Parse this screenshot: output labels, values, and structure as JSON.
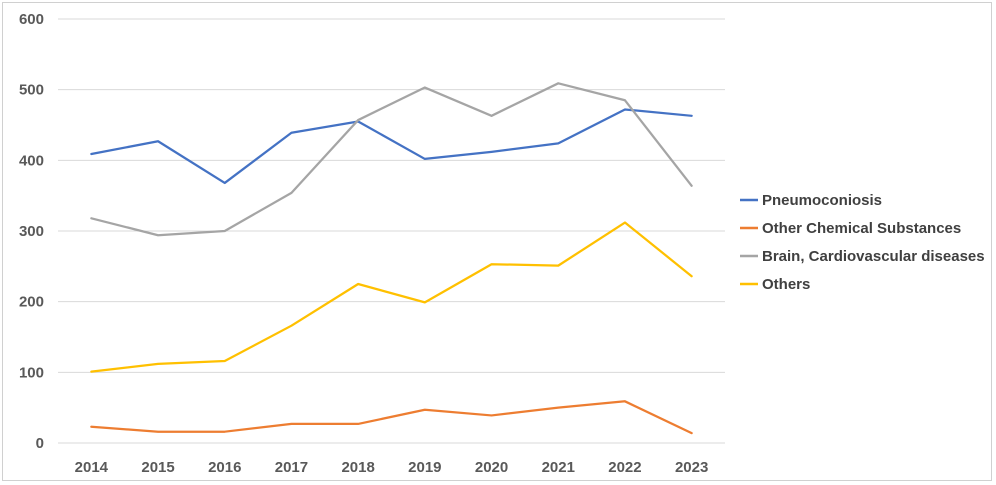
{
  "chart_data": {
    "type": "line",
    "title": "",
    "xlabel": "",
    "ylabel": "",
    "categories": [
      "2014",
      "2015",
      "2016",
      "2017",
      "2018",
      "2019",
      "2020",
      "2021",
      "2022",
      "2023"
    ],
    "ylim": [
      0,
      600
    ],
    "yticks": [
      "0",
      "100",
      "200",
      "300",
      "400",
      "500",
      "600"
    ],
    "grid": "horizontal",
    "legend_position": "right",
    "series": [
      {
        "name": "Pneumoconiosis",
        "color": "#4472C4",
        "values": [
          409,
          427,
          368,
          439,
          455,
          402,
          412,
          424,
          472,
          463
        ]
      },
      {
        "name": "Other Chemical Substances",
        "color": "#ED7D31",
        "values": [
          23,
          16,
          16,
          27,
          27,
          47,
          39,
          50,
          59,
          14
        ]
      },
      {
        "name": "Brain, Cardiovascular diseases",
        "color": "#A5A5A5",
        "values": [
          318,
          294,
          300,
          354,
          457,
          503,
          463,
          509,
          485,
          364
        ]
      },
      {
        "name": "Others",
        "color": "#FFC000",
        "values": [
          101,
          112,
          116,
          166,
          225,
          199,
          253,
          251,
          312,
          236
        ]
      }
    ]
  }
}
